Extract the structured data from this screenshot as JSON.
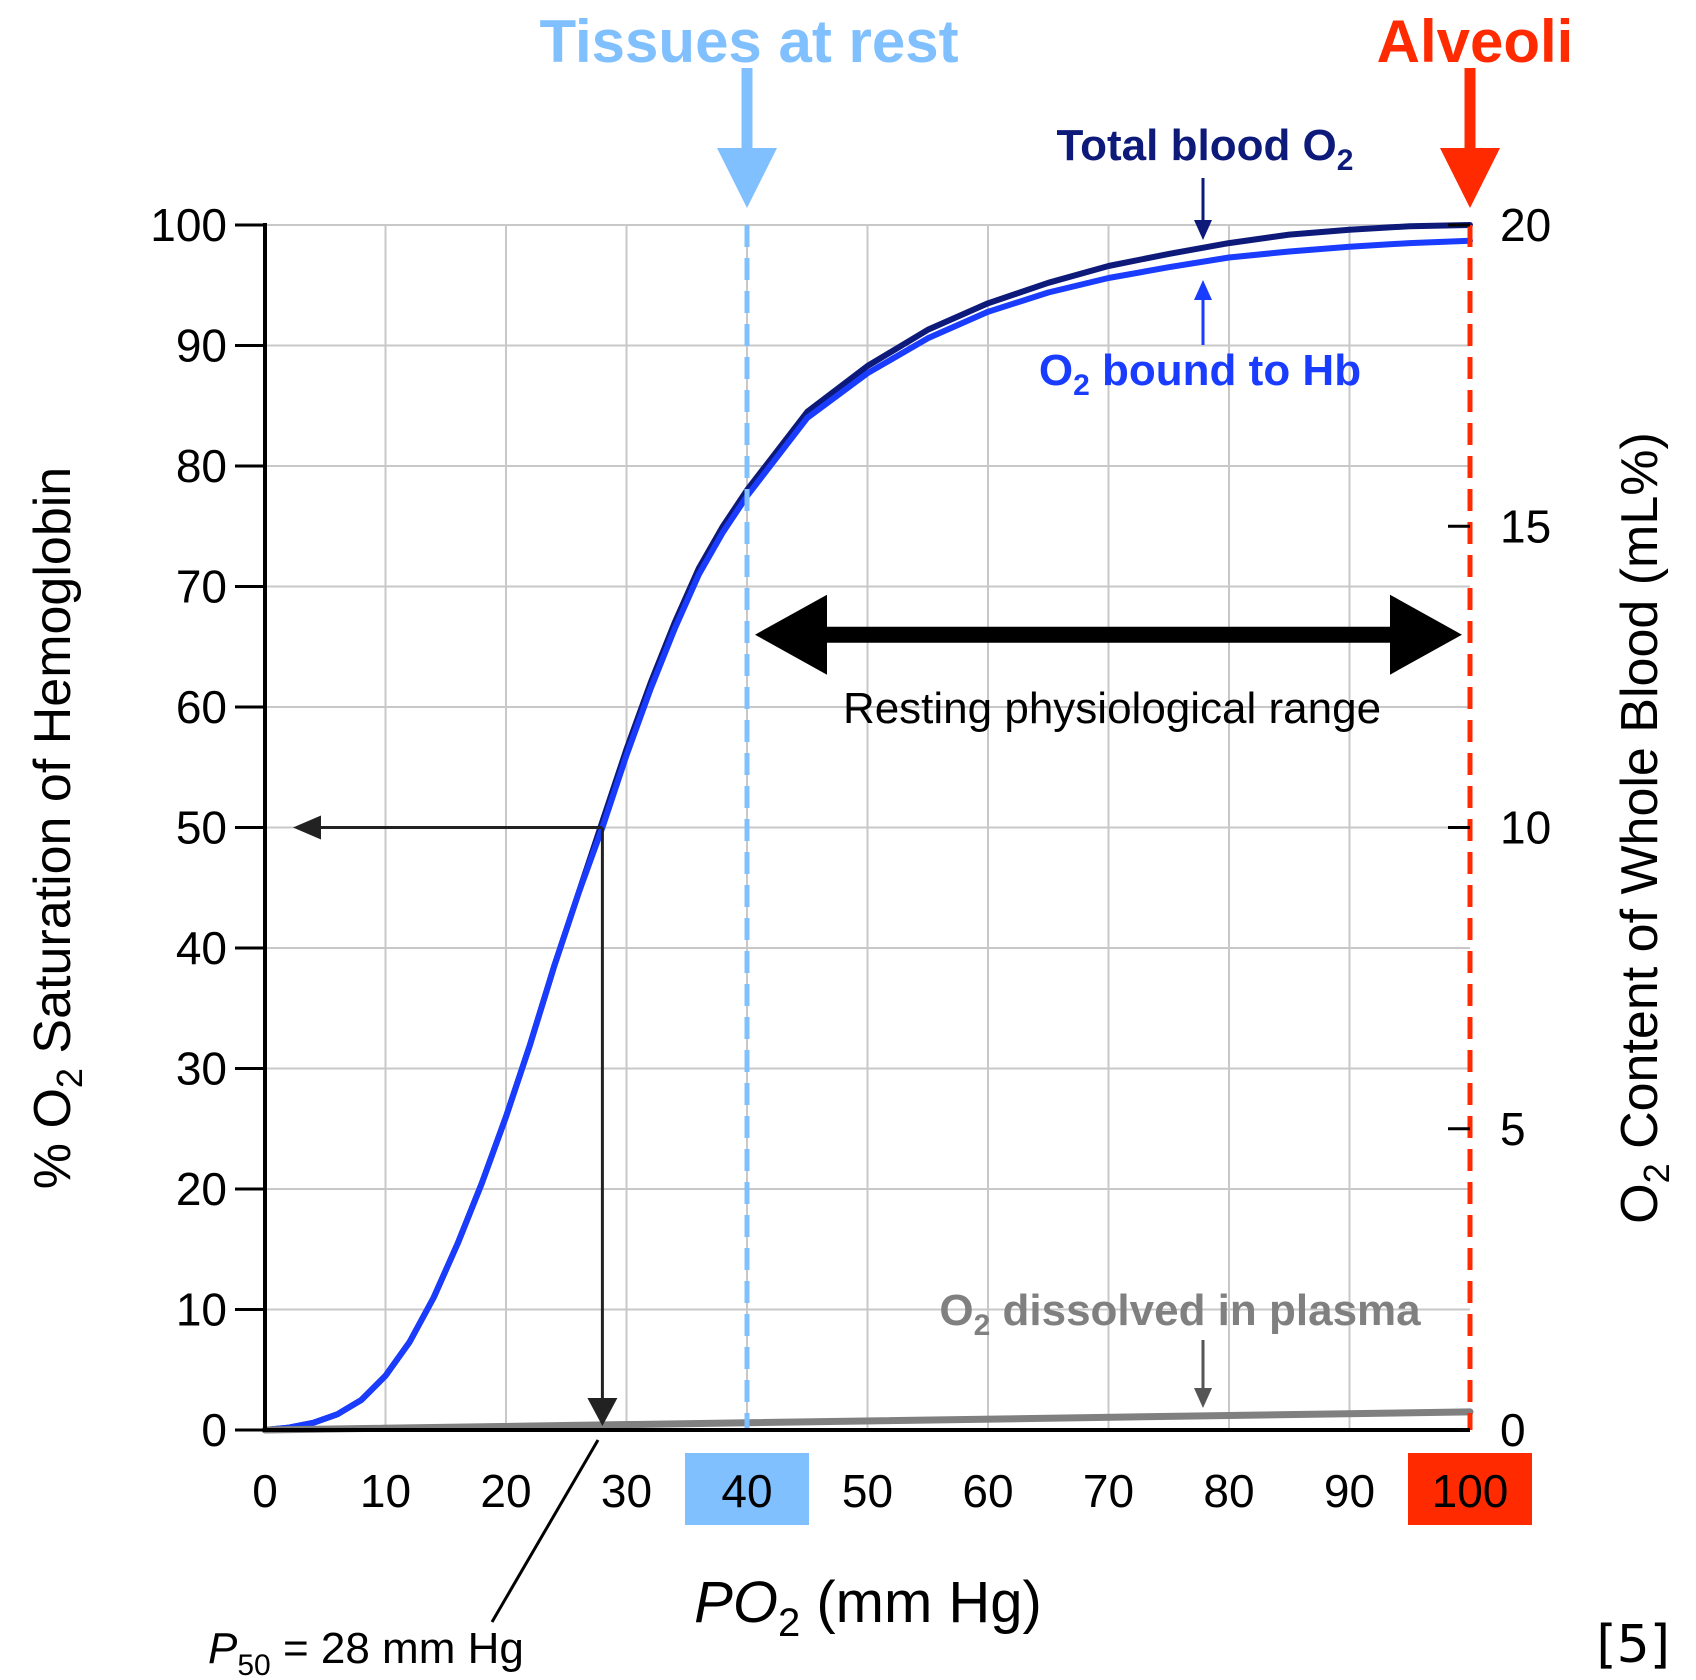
{
  "chart_data": {
    "type": "line",
    "xlabel_italic": "P",
    "xlabel_rest": "O",
    "xlabel_sub": "2",
    "xlabel_units": " (mm Hg)",
    "ylabel_left_prefix": "% O",
    "ylabel_left_sub": "2",
    "ylabel_left_suffix": " Saturation of Hemoglobin",
    "ylabel_right_prefix": "O",
    "ylabel_right_sub": "2",
    "ylabel_right_suffix": " Content of Whole Blood (mL%)",
    "xlim": [
      0,
      100
    ],
    "ylim_left": [
      0,
      100
    ],
    "ylim_right": [
      0,
      20
    ],
    "x_ticks": [
      "0",
      "10",
      "20",
      "30",
      "40",
      "50",
      "60",
      "70",
      "80",
      "90",
      "100"
    ],
    "y_left_ticks": [
      "0",
      "10",
      "20",
      "30",
      "40",
      "50",
      "60",
      "70",
      "80",
      "90",
      "100"
    ],
    "y_right_ticks": [
      "0",
      "5",
      "10",
      "15",
      "20"
    ],
    "grid": true,
    "series": [
      {
        "name": "Total blood O",
        "name_sub": "2",
        "color": "#0d1a7a",
        "x": [
          0,
          2,
          4,
          6,
          8,
          10,
          12,
          14,
          16,
          18,
          20,
          22,
          24,
          26,
          28,
          30,
          32,
          34,
          36,
          38,
          40,
          45,
          50,
          55,
          60,
          65,
          70,
          75,
          80,
          85,
          90,
          95,
          100
        ],
        "y": [
          0,
          0.2,
          0.6,
          1.3,
          2.5,
          4.5,
          7.3,
          11,
          15.5,
          20.5,
          26,
          32,
          38.5,
          44.5,
          50.5,
          56.5,
          62,
          67,
          71.5,
          75,
          78,
          84.5,
          88.3,
          91.3,
          93.5,
          95.2,
          96.6,
          97.6,
          98.5,
          99.2,
          99.6,
          99.9,
          100
        ]
      },
      {
        "name": "O",
        "name_sub": "2",
        "name_suffix": " bound to Hb",
        "color": "#1a3cff",
        "x": [
          0,
          2,
          4,
          6,
          8,
          10,
          12,
          14,
          16,
          18,
          20,
          22,
          24,
          26,
          28,
          30,
          32,
          34,
          36,
          38,
          40,
          45,
          50,
          55,
          60,
          65,
          70,
          75,
          80,
          85,
          90,
          95,
          100
        ],
        "y": [
          0,
          0.2,
          0.6,
          1.3,
          2.5,
          4.5,
          7.3,
          11,
          15.5,
          20.5,
          26,
          32,
          38.5,
          44.5,
          50,
          56,
          61.5,
          66.5,
          71,
          74.5,
          77.5,
          84,
          87.7,
          90.6,
          92.8,
          94.4,
          95.6,
          96.5,
          97.3,
          97.8,
          98.2,
          98.5,
          98.7
        ]
      },
      {
        "name": "O",
        "name_sub": "2",
        "name_suffix": " dissolved in plasma",
        "color": "#808080",
        "x": [
          0,
          100
        ],
        "y": [
          0,
          1.5
        ]
      }
    ],
    "annotations": {
      "tissues_label": "Tissues at rest",
      "tissues_x": 40,
      "tissues_color": "#80c0ff",
      "alveoli_label": "Alveoli",
      "alveoli_x": 100,
      "alveoli_color": "#ff2a00",
      "range_label": "Resting physiological range",
      "range_y": 66,
      "p50_x": 28,
      "p50_y": 50,
      "p50_italic": "P",
      "p50_sub": "50",
      "p50_text": " = 28 mm Hg",
      "highlight_40_color": "#80c0ff",
      "highlight_100_color": "#ff2a00"
    },
    "reference": "[5]"
  }
}
